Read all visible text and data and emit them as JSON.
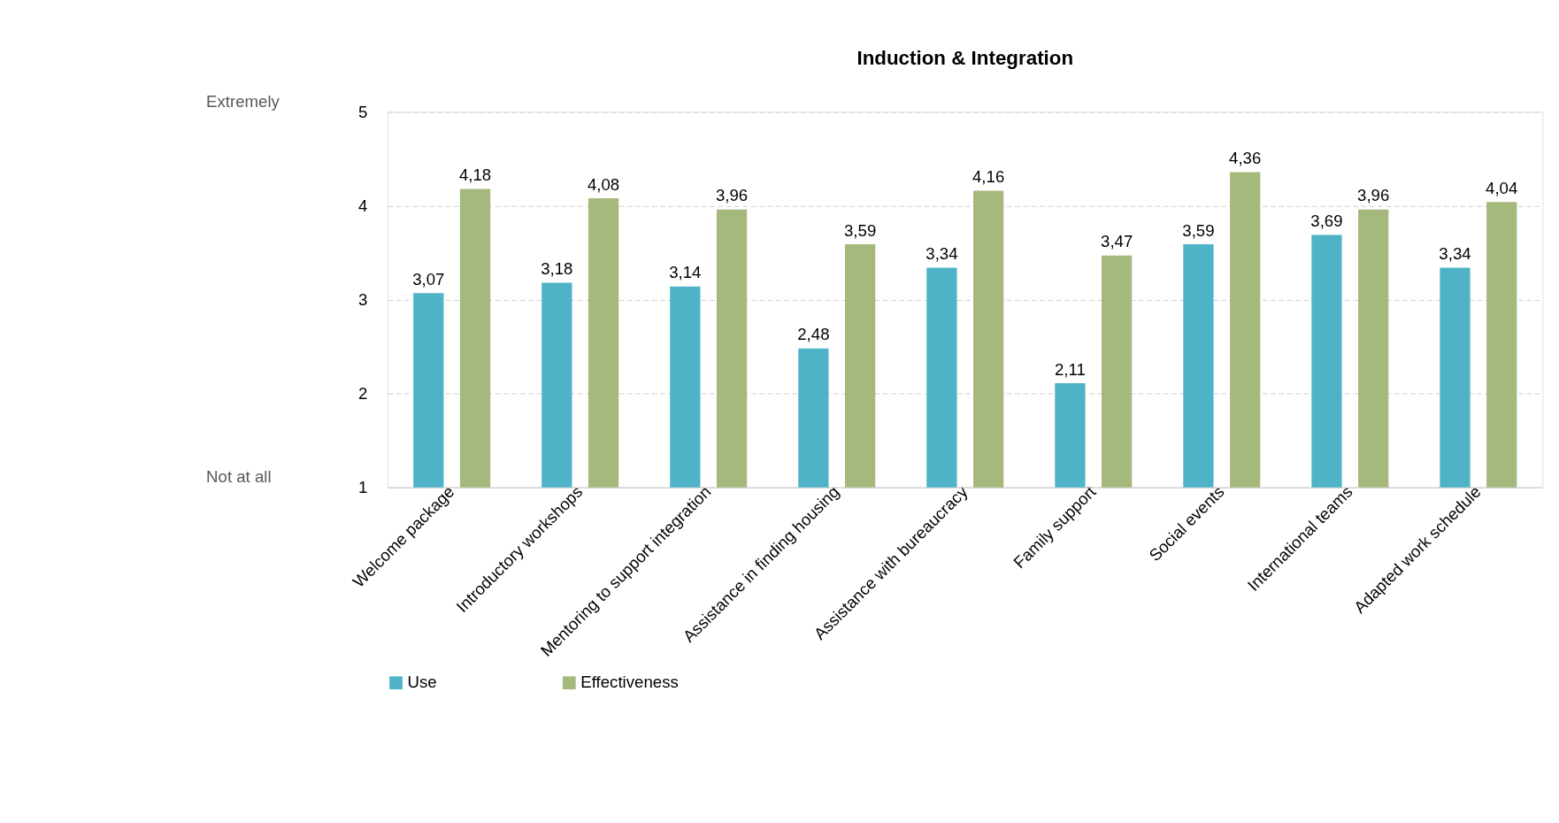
{
  "chart_data": {
    "type": "bar",
    "title": "Induction & Integration",
    "categories": [
      "Welcome package",
      "Introductory workshops",
      "Mentoring to support integration",
      "Assistance in finding housing",
      "Assistance with bureaucracy",
      "Family support",
      "Social events",
      "International teams",
      "Adapted work schedule"
    ],
    "series": [
      {
        "name": "Use",
        "color": "#4fb3c8",
        "values": [
          3.07,
          3.18,
          3.14,
          2.48,
          3.34,
          2.11,
          3.59,
          3.69,
          3.34
        ],
        "value_labels": [
          "3,07",
          "3,18",
          "3,14",
          "2,48",
          "3,34",
          "2,11",
          "3,59",
          "3,69",
          "3,34"
        ]
      },
      {
        "name": "Effectiveness",
        "color": "#a6b97c",
        "values": [
          4.18,
          4.08,
          3.96,
          3.59,
          4.16,
          3.47,
          4.36,
          3.96,
          4.04
        ],
        "value_labels": [
          "4,18",
          "4,08",
          "3,96",
          "3,59",
          "4,16",
          "3,47",
          "4,36",
          "3,96",
          "4,04"
        ]
      }
    ],
    "ylim": [
      1,
      5
    ],
    "yticks": [
      1,
      2,
      3,
      4,
      5
    ],
    "grid": "y",
    "legend": "bottom",
    "annotations": [
      "Extremely",
      "Not at all"
    ]
  }
}
